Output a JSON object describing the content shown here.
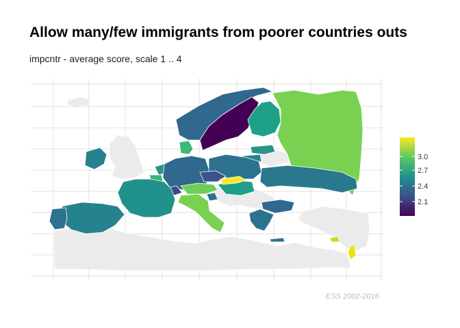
{
  "title": "Allow many/few immigrants from poorer countries outs",
  "subtitle": "impcntr - average score, scale 1 .. 4",
  "caption": "ESS 2002-2016",
  "legend": {
    "ticks": [
      "3.0",
      "2.7",
      "2.4",
      "2.1"
    ],
    "colors": [
      "#fde725",
      "#5ec962",
      "#21918c",
      "#3b528b",
      "#440154"
    ]
  },
  "colors": {
    "no_data": "#ebebeb",
    "border": "#ffffff",
    "grid": "#d9d9d9"
  },
  "countries": [
    {
      "name": "Norway",
      "fill": "#31688e"
    },
    {
      "name": "Sweden",
      "fill": "#440154"
    },
    {
      "name": "Finland",
      "fill": "#1fa187"
    },
    {
      "name": "Russia",
      "fill": "#7ad151"
    },
    {
      "name": "Estonia",
      "fill": "#2a9489"
    },
    {
      "name": "Lithuania",
      "fill": "#26828e"
    },
    {
      "name": "Iceland",
      "fill": "#ebebeb"
    },
    {
      "name": "United Kingdom",
      "fill": "#26828e"
    },
    {
      "name": "Ireland",
      "fill": "#3bbb75"
    },
    {
      "name": "Denmark",
      "fill": "#2a9489"
    },
    {
      "name": "Netherlands",
      "fill": "#35b779"
    },
    {
      "name": "Belgium",
      "fill": "#31688e"
    },
    {
      "name": "Germany",
      "fill": "#2c728e"
    },
    {
      "name": "Poland",
      "fill": "#3b528b"
    },
    {
      "name": "Czechia",
      "fill": "#6ece58"
    },
    {
      "name": "Austria",
      "fill": "#3e4a89"
    },
    {
      "name": "Switzerland",
      "fill": "#1f9e89"
    },
    {
      "name": "Hungary",
      "fill": "#fde725"
    },
    {
      "name": "Slovakia",
      "fill": "#2a788e"
    },
    {
      "name": "Ukraine",
      "fill": "#21918c"
    },
    {
      "name": "France",
      "fill": "#26828e"
    },
    {
      "name": "Spain",
      "fill": "#2c728e"
    },
    {
      "name": "Portugal",
      "fill": "#7ad151"
    },
    {
      "name": "Italy",
      "fill": "#2c728e"
    },
    {
      "name": "Slovenia",
      "fill": "#31688e"
    },
    {
      "name": "Bulgaria",
      "fill": "#2c728e"
    },
    {
      "name": "Greece",
      "fill": "#c2df23"
    },
    {
      "name": "Cyprus",
      "fill": "#e5e419"
    },
    {
      "name": "Israel",
      "fill": "#6ece58"
    }
  ]
}
